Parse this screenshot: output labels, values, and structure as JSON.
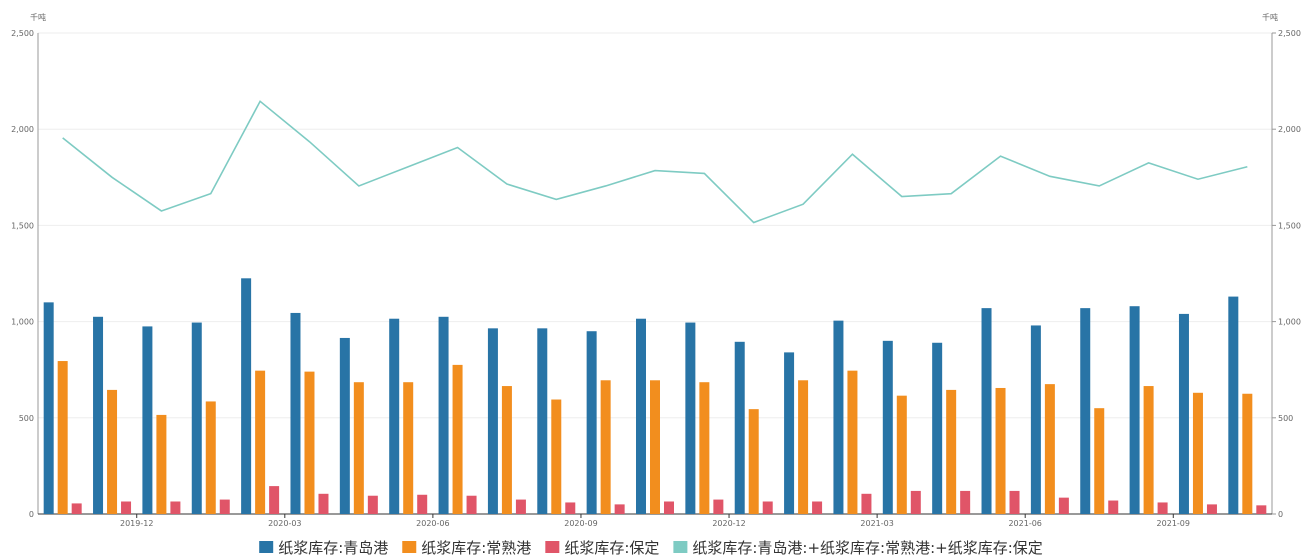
{
  "chart_data": {
    "type": "bar",
    "left_unit": "千吨",
    "right_unit": "千吨",
    "left_axis": {
      "min": 0,
      "max": 2500,
      "ticks": [
        0,
        500,
        1000,
        1500,
        2000,
        2500
      ],
      "tick_labels": [
        "0",
        "500",
        "1,000",
        "1,500",
        "2,000",
        "2,500"
      ]
    },
    "right_axis": {
      "min": 0,
      "max": 2500,
      "ticks": [
        0,
        500,
        1000,
        1500,
        2000,
        2500
      ],
      "tick_labels": [
        "0",
        "500",
        "1,000",
        "1,500",
        "2,000",
        "2,500"
      ]
    },
    "x_tick_labels": [
      {
        "label": "2019-12",
        "index": 2
      },
      {
        "label": "2020-03",
        "index": 5
      },
      {
        "label": "2020-06",
        "index": 8
      },
      {
        "label": "2020-09",
        "index": 11
      },
      {
        "label": "2020-12",
        "index": 14
      },
      {
        "label": "2021-03",
        "index": 17
      },
      {
        "label": "2021-06",
        "index": 20
      },
      {
        "label": "2021-09",
        "index": 23
      }
    ],
    "grid": true,
    "legend_position": "bottom",
    "series": [
      {
        "name": "纸浆库存:青岛港",
        "kind": "bar",
        "axis": "left",
        "color": "#2874a6",
        "values": [
          1100,
          1025,
          975,
          995,
          1225,
          1045,
          915,
          1015,
          1025,
          965,
          965,
          950,
          1015,
          995,
          895,
          840,
          1005,
          900,
          890,
          1070,
          980,
          1070,
          1080,
          1040,
          1130
        ]
      },
      {
        "name": "纸浆库存:常熟港",
        "kind": "bar",
        "axis": "left",
        "color": "#f28e1e",
        "values": [
          795,
          645,
          515,
          585,
          745,
          740,
          685,
          685,
          775,
          665,
          595,
          695,
          695,
          685,
          545,
          695,
          745,
          615,
          645,
          655,
          675,
          550,
          665,
          630,
          625
        ]
      },
      {
        "name": "纸浆库存:保定",
        "kind": "bar",
        "axis": "left",
        "color": "#e05568",
        "values": [
          55,
          65,
          65,
          75,
          145,
          105,
          95,
          100,
          95,
          75,
          60,
          50,
          65,
          75,
          65,
          65,
          105,
          120,
          120,
          120,
          85,
          70,
          60,
          50,
          45
        ]
      },
      {
        "name": "纸浆库存:青岛港:+纸浆库存:常熟港:+纸浆库存:保定",
        "kind": "line",
        "axis": "right",
        "color": "#7ecbc3",
        "values": [
          1955,
          1750,
          1575,
          1665,
          2145,
          1935,
          1705,
          1805,
          1905,
          1715,
          1635,
          1705,
          1785,
          1770,
          1515,
          1610,
          1870,
          1650,
          1665,
          1860,
          1755,
          1705,
          1825,
          1740,
          1805
        ]
      }
    ]
  }
}
